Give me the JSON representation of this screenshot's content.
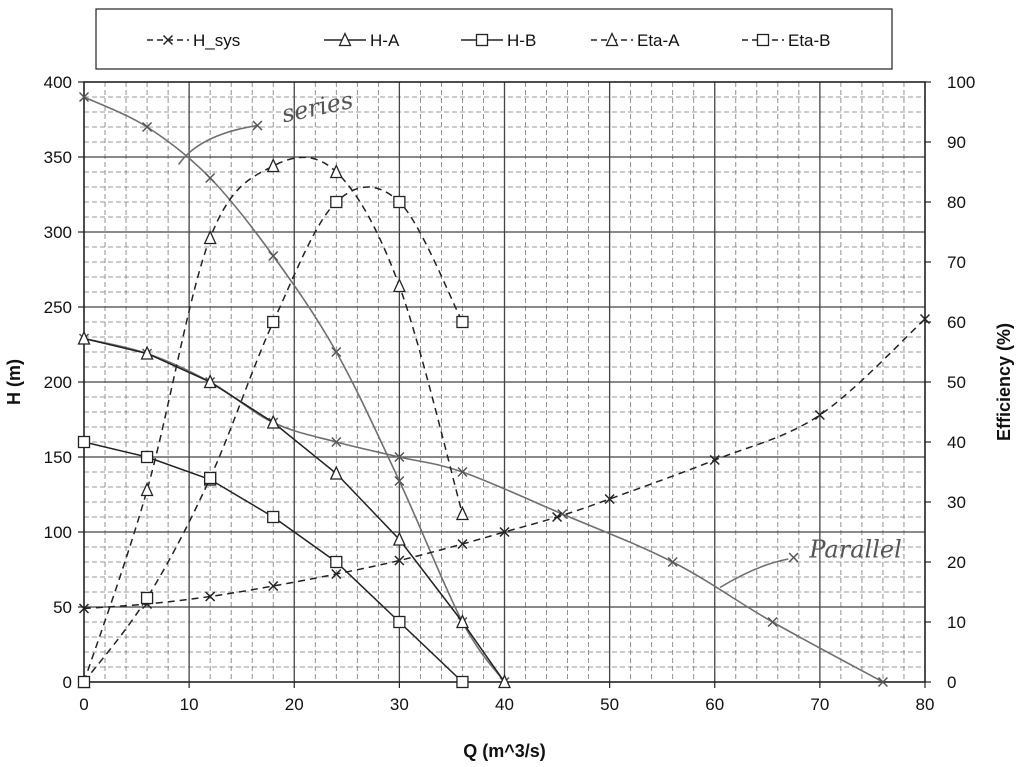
{
  "chart_data": {
    "type": "line",
    "xlabel": "Q (m^3/s)",
    "ylabel": "H (m)",
    "y2label": "Efficiency (%)",
    "xlim": [
      0,
      80
    ],
    "ylim": [
      0,
      400
    ],
    "y2lim": [
      0,
      100
    ],
    "xticks": [
      0,
      10,
      20,
      30,
      40,
      50,
      60,
      70,
      80
    ],
    "yticks": [
      0,
      50,
      100,
      150,
      200,
      250,
      300,
      350,
      400
    ],
    "y2ticks": [
      0,
      10,
      20,
      30,
      40,
      50,
      60,
      70,
      80,
      90,
      100
    ],
    "grid": true,
    "legend_position": "top",
    "series": [
      {
        "name": "H_sys",
        "axis": "left",
        "style": "dashed",
        "marker": "cross",
        "x": [
          0,
          6,
          12,
          18,
          24,
          30,
          36,
          40,
          45,
          50,
          60,
          70,
          80
        ],
        "y": [
          49,
          52,
          57,
          64,
          72,
          81,
          92,
          100,
          110,
          122,
          148,
          178,
          242
        ]
      },
      {
        "name": "H-A",
        "axis": "left",
        "style": "solid",
        "marker": "triangle",
        "x": [
          0,
          6,
          12,
          18,
          24,
          30,
          36,
          40
        ],
        "y": [
          229,
          219,
          200,
          173,
          139,
          95,
          40,
          0
        ]
      },
      {
        "name": "H-B",
        "axis": "left",
        "style": "solid",
        "marker": "square",
        "x": [
          0,
          6,
          12,
          18,
          24,
          30,
          36
        ],
        "y": [
          160,
          150,
          135,
          110,
          80,
          40,
          0
        ]
      },
      {
        "name": "Eta-A",
        "axis": "right",
        "style": "dashed",
        "marker": "triangle",
        "x": [
          0,
          6,
          12,
          18,
          24,
          30,
          36
        ],
        "y": [
          0,
          32,
          74,
          86,
          85,
          66,
          28
        ]
      },
      {
        "name": "Eta-B",
        "axis": "right",
        "style": "dashed",
        "marker": "square",
        "x": [
          0,
          6,
          12,
          18,
          24,
          30,
          36
        ],
        "y": [
          0,
          14,
          34,
          60,
          80,
          80,
          60
        ]
      }
    ],
    "annotations": [
      {
        "label": "series",
        "marker": "x",
        "x": [
          0,
          6,
          12,
          18,
          24,
          30,
          36,
          40
        ],
        "y": [
          390,
          370,
          336,
          284,
          220,
          134,
          40,
          0
        ]
      },
      {
        "label": "Parallel",
        "marker": "x",
        "x": [
          0,
          6,
          12,
          18,
          24,
          30,
          36,
          45.5,
          56,
          65.5,
          76
        ],
        "y": [
          229,
          219,
          200,
          173,
          160,
          150,
          140,
          112,
          80,
          40,
          0
        ]
      }
    ]
  },
  "notes": {
    "series_label": "series",
    "parallel_label": "Parallel"
  }
}
